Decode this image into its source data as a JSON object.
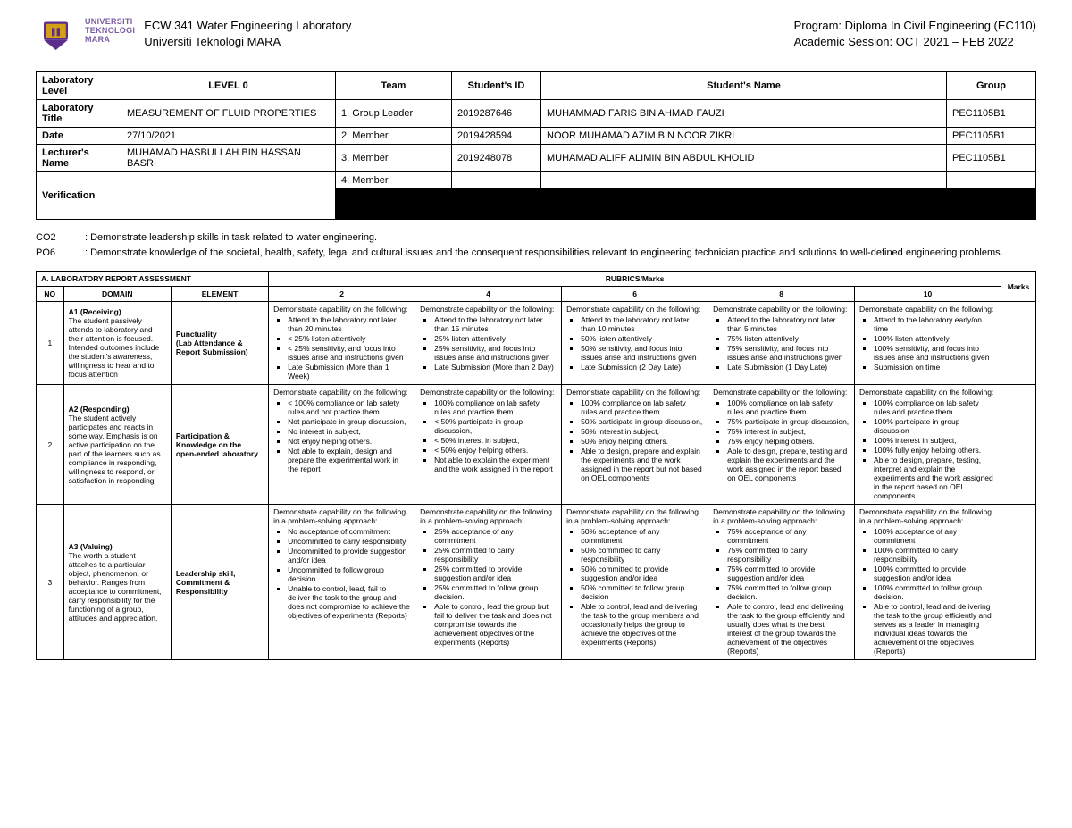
{
  "header": {
    "inst_line1": "Universiti",
    "inst_line2": "Teknologi",
    "inst_line3": "MARA",
    "course_code": "ECW 341 Water Engineering Laboratory",
    "university": "Universiti Teknologi MARA",
    "program_label": "Program: ",
    "program_value": "Diploma In Civil Engineering (EC110)",
    "session_label": "Academic Session: ",
    "session_value": "OCT 2021 – FEB 2022"
  },
  "info": {
    "labels": {
      "lab_level": "Laboratory Level",
      "lab_title": "Laboratory Title",
      "date": "Date",
      "lecturer": "Lecturer's Name",
      "verification": "Verification",
      "team": "Team",
      "student_id": "Student's ID",
      "student_name": "Student's Name",
      "group": "Group"
    },
    "lab_level": "LEVEL 0",
    "lab_title": "MEASUREMENT OF FLUID PROPERTIES",
    "date": "27/10/2021",
    "lecturer": "MUHAMAD HASBULLAH BIN HASSAN BASRI",
    "roles": {
      "r1": "1.    Group Leader",
      "r2": "2.    Member",
      "r3": "3.    Member",
      "r4": "4.    Member"
    },
    "students": [
      {
        "id": "2019287646",
        "name": "MUHAMMAD FARIS BIN AHMAD FAUZI",
        "group": "PEC1105B1"
      },
      {
        "id": "2019428594",
        "name": "NOOR MUHAMAD AZIM BIN NOOR ZIKRI",
        "group": "PEC1105B1"
      },
      {
        "id": "2019248078",
        "name": "MUHAMAD ALIFF ALIMIN BIN ABDUL KHOLID",
        "group": "PEC1105B1"
      },
      {
        "id": "",
        "name": "",
        "group": ""
      }
    ]
  },
  "outcomes": {
    "co2_label": "CO2",
    "co2_text": ": Demonstrate leadership skills in task related to water engineering.",
    "po6_label": "PO6",
    "po6_text": ": Demonstrate knowledge of the societal, health, safety, legal and cultural issues and the consequent responsibilities relevant to engineering technician practice and solutions to well-defined engineering problems."
  },
  "rubric": {
    "section": "A.      LABORATORY REPORT  ASSESSMENT",
    "cols": {
      "no": "NO",
      "domain": "DOMAIN",
      "element": "ELEMENT",
      "rubrics": "RUBRICS/Marks",
      "marks": "Marks"
    },
    "scores": {
      "s2": "2",
      "s4": "4",
      "s6": "6",
      "s8": "8",
      "s10": "10"
    },
    "lead": "Demonstrate capability on the following:",
    "lead_ps": "Demonstrate capability on the following in a problem-solving approach:",
    "rows": [
      {
        "no": "1",
        "domain_title": "A1 (Receiving)",
        "domain_desc": "The student passively attends to laboratory and their attention is focused. Intended outcomes include the student's awareness, willingness to hear and to focus attention",
        "element": "Punctuality\n(Lab Attendance & Report Submission)",
        "c2": [
          "Attend to the laboratory not later than 20 minutes",
          "< 25% listen attentively",
          "< 25% sensitivity, and focus into issues arise and instructions given",
          "Late Submission (More than 1 Week)"
        ],
        "c4": [
          "Attend to the laboratory not later than 15 minutes",
          "25% listen attentively",
          "25% sensitivity, and focus into issues arise and instructions given",
          "Late Submission (More than 2 Day)"
        ],
        "c6": [
          "Attend to the laboratory not later than 10 minutes",
          "50% listen attentively",
          "50% sensitivity, and focus into issues arise and instructions given",
          "Late Submission (2 Day Late)"
        ],
        "c8": [
          "Attend to the laboratory not later than 5 minutes",
          "75% listen attentively",
          "75% sensitivity, and focus into issues arise and instructions given",
          "Late Submission (1 Day Late)"
        ],
        "c10": [
          "Attend to the laboratory early/on time",
          "100% listen attentively",
          "100% sensitivity, and focus into issues arise and instructions given",
          "Submission on time"
        ]
      },
      {
        "no": "2",
        "domain_title": "A2 (Responding)",
        "domain_desc": "The student actively participates and reacts in some way. Emphasis is on active participation on the part of the learners such as compliance in responding, willingness to respond, or satisfaction in responding",
        "element": "Participation & Knowledge on the open-ended laboratory",
        "c2": [
          "< 100% compliance on lab safety rules and not practice them",
          "Not participate in group discussion,",
          "No interest in subject,",
          "Not enjoy helping others.",
          "Not able to explain, design and prepare the experimental work in the report"
        ],
        "c4": [
          "100% compliance on lab safety rules and practice them",
          "< 50% participate in group discussion,",
          "< 50% interest in subject,",
          "< 50% enjoy helping others.",
          "Not able to explain the experiment and the work assigned in the report"
        ],
        "c6": [
          "100% compliance on lab safety rules and practice them",
          "50% participate in group discussion,",
          "50% interest in subject,",
          "50% enjoy helping others.",
          "Able to design, prepare and explain the experiments and the work assigned in the report but not based on OEL components"
        ],
        "c8": [
          "100% compliance on lab safety rules and practice them",
          "75% participate in group discussion,",
          "75% interest in subject,",
          "75% enjoy helping others.",
          "Able to design, prepare, testing and explain the experiments and the work assigned in the report based on OEL components"
        ],
        "c10": [
          "100% compliance on lab safety rules and practice them",
          "100% participate in group discussion",
          "100% interest in subject,",
          "100% fully enjoy helping others.",
          "Able to design, prepare, testing, interpret and explain the experiments and the work assigned in the report based on OEL components"
        ]
      },
      {
        "no": "3",
        "domain_title": "A3 (Valuing)",
        "domain_desc": "The worth a student attaches to a particular object, phenomenon, or behavior. Ranges from acceptance to commitment, carry responsibility for the functioning of a group, attitudes and appreciation.",
        "element": "Leadership skill, Commitment & Responsibility",
        "ps": true,
        "c2": [
          "No acceptance of commitment",
          "Uncommitted to carry responsibility",
          "Uncommitted to provide suggestion and/or idea",
          "Uncommitted to follow group decision",
          "Unable to control, lead, fail to deliver the task to the group and does not compromise to achieve the objectives of experiments (Reports)"
        ],
        "c4": [
          "25% acceptance of any commitment",
          "25% committed to carry responsibility",
          "25% committed to provide suggestion and/or idea",
          "25% committed to follow group decision.",
          "Able to control, lead the group but fail to deliver the task and does not compromise towards the achievement objectives of the experiments (Reports)"
        ],
        "c6": [
          "50% acceptance of any commitment",
          "50% committed to carry responsibility",
          "50% committed to provide suggestion and/or idea",
          "50% committed to follow group decision",
          "Able to control, lead and delivering the task to the group members and occasionally helps the group to achieve the objectives of the experiments (Reports)"
        ],
        "c8": [
          "75% acceptance of any commitment",
          "75% committed to carry responsibility",
          "75% committed to provide suggestion and/or idea",
          "75% committed to follow group decision.",
          "Able to control, lead and delivering the task to the group efficiently and usually does what is the best interest of the group towards the achievement of the objectives (Reports)"
        ],
        "c10": [
          "100% acceptance of any commitment",
          "100% committed to carry responsibility",
          "100% committed to provide suggestion and/or idea",
          "100% committed to follow group decision.",
          "Able to control, lead and delivering the task to the group efficiently and serves as a leader in managing individual ideas towards the achievement of the objectives (Reports)"
        ]
      }
    ]
  },
  "colors": {
    "logo_purple": "#5b2e8e",
    "logo_gold": "#d4a017",
    "text": "#000000",
    "border": "#000000"
  }
}
